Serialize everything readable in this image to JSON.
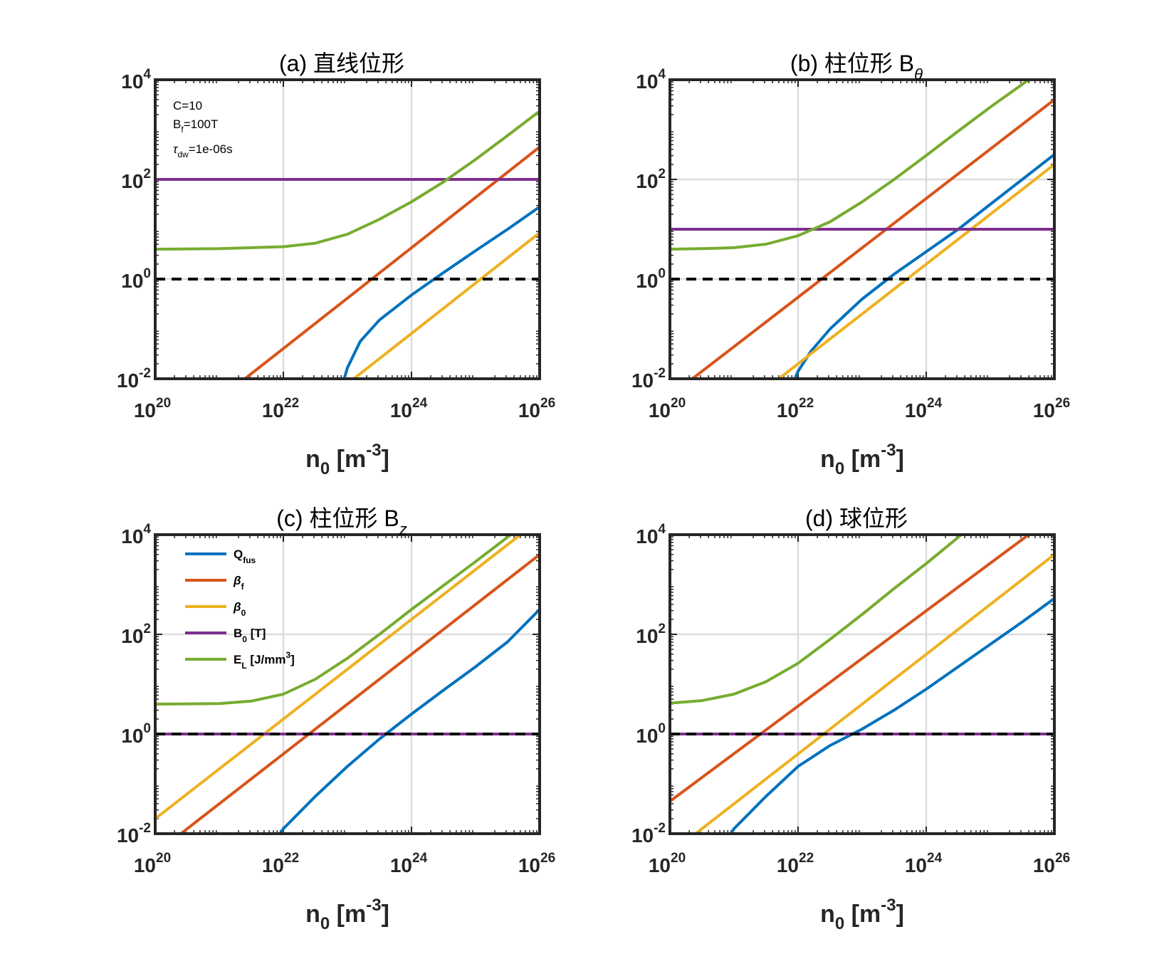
{
  "colors": {
    "Qfus": "#0072BD",
    "beta_f": "#D95319",
    "beta_0": "#EDB120",
    "B0": "#7E2F8E",
    "EL": "#77AC30",
    "reference": "#000000",
    "grid": "#dcdcdc",
    "axes": "#262626"
  },
  "shared": {
    "x_tick_labels": [
      {
        "base": "10",
        "exp": "20"
      },
      {
        "base": "10",
        "exp": "22"
      },
      {
        "base": "10",
        "exp": "24"
      },
      {
        "base": "10",
        "exp": "26"
      }
    ],
    "y_tick_labels": [
      {
        "base": "10",
        "exp": "4"
      },
      {
        "base": "10",
        "exp": "2"
      },
      {
        "base": "10",
        "exp": "0"
      },
      {
        "base": "10",
        "exp": "-2"
      }
    ],
    "xlabel": {
      "main": "n",
      "sub": "0",
      "unit_open": " [m",
      "unit_exp": "-3",
      "unit_close": "]"
    }
  },
  "annotation": {
    "line1": "C=10",
    "line2_main": "B",
    "line2_sub": "f",
    "line2_rest": "=100T",
    "line3_main": "τ",
    "line3_sub": "dw",
    "line3_rest": "=1e-06s"
  },
  "legend": [
    {
      "key": "Qfus",
      "main": "Q",
      "sub": "fus",
      "rest": ""
    },
    {
      "key": "beta_f",
      "main": "β",
      "sub": "f",
      "rest": ""
    },
    {
      "key": "beta_0",
      "main": "β",
      "sub": "0",
      "rest": ""
    },
    {
      "key": "B0",
      "main": "B",
      "sub": "0",
      "rest": " [T]"
    },
    {
      "key": "EL",
      "main": "E",
      "sub": "L",
      "rest": " [J/mm",
      "sup": "3",
      "close": "]"
    }
  ],
  "chart_data": [
    {
      "type": "line",
      "title": "(a) 直线位形",
      "title_sub": "",
      "xlabel": "n0 [m^-3]",
      "xscale": "log",
      "yscale": "log",
      "xlim_exp": [
        20,
        26
      ],
      "ylim_exp": [
        -2,
        4
      ],
      "grid": true,
      "reference_line_y": 1,
      "series": [
        {
          "key": "Qfus",
          "name": "Qfus",
          "x_exp": [
            22.95,
            23.0,
            23.2,
            23.5,
            24.0,
            24.5,
            25.0,
            25.5,
            26.0
          ],
          "y_exp": [
            -2.0,
            -1.78,
            -1.25,
            -0.82,
            -0.32,
            0.13,
            0.57,
            1.0,
            1.45
          ]
        },
        {
          "key": "beta_f",
          "name": "βf",
          "x_exp": [
            21.4,
            26.0
          ],
          "y_exp": [
            -2.0,
            2.65
          ]
        },
        {
          "key": "beta_0",
          "name": "β0",
          "x_exp": [
            23.1,
            26.0
          ],
          "y_exp": [
            -2.0,
            0.93
          ]
        },
        {
          "key": "B0",
          "name": "B0 [T]",
          "x_exp": [
            20.0,
            26.0
          ],
          "y_exp": [
            2.0,
            2.0
          ]
        },
        {
          "key": "EL",
          "name": "EL [J/mm3]",
          "x_exp": [
            20.0,
            21.0,
            22.0,
            22.5,
            23.0,
            23.5,
            24.0,
            24.5,
            25.0,
            25.5,
            26.0
          ],
          "y_exp": [
            0.6,
            0.61,
            0.65,
            0.72,
            0.9,
            1.2,
            1.55,
            1.95,
            2.4,
            2.88,
            3.37
          ]
        }
      ]
    },
    {
      "type": "line",
      "title": "(b) 柱位形 B",
      "title_sub": "θ",
      "xlabel": "n0 [m^-3]",
      "xscale": "log",
      "yscale": "log",
      "xlim_exp": [
        20,
        26
      ],
      "ylim_exp": [
        -2,
        4
      ],
      "grid": true,
      "reference_line_y": 1,
      "series": [
        {
          "key": "Qfus",
          "name": "Qfus",
          "x_exp": [
            21.95,
            22.0,
            22.2,
            22.5,
            23.0,
            23.5,
            24.0,
            24.5,
            25.0,
            25.5,
            26.0
          ],
          "y_exp": [
            -2.0,
            -1.85,
            -1.45,
            -1.0,
            -0.4,
            0.1,
            0.55,
            1.0,
            1.5,
            2.0,
            2.5
          ]
        },
        {
          "key": "beta_f",
          "name": "βf",
          "x_exp": [
            20.35,
            26.0
          ],
          "y_exp": [
            -2.0,
            3.6
          ]
        },
        {
          "key": "beta_0",
          "name": "β0",
          "x_exp": [
            21.7,
            26.0
          ],
          "y_exp": [
            -2.0,
            2.3
          ]
        },
        {
          "key": "B0",
          "name": "B0 [T]",
          "x_exp": [
            20.0,
            26.0
          ],
          "y_exp": [
            1.0,
            1.0
          ]
        },
        {
          "key": "EL",
          "name": "EL [J/mm3]",
          "x_exp": [
            20.0,
            20.5,
            21.0,
            21.5,
            22.0,
            22.5,
            23.0,
            23.5,
            24.0,
            24.5,
            25.0,
            25.6
          ],
          "y_exp": [
            0.6,
            0.61,
            0.63,
            0.7,
            0.87,
            1.15,
            1.55,
            2.0,
            2.48,
            2.97,
            3.45,
            4.0
          ]
        }
      ]
    },
    {
      "type": "line",
      "title": "(c) 柱位形 B",
      "title_sub": "z",
      "xlabel": "n0 [m^-3]",
      "xscale": "log",
      "yscale": "log",
      "xlim_exp": [
        20,
        26
      ],
      "ylim_exp": [
        -2,
        4
      ],
      "grid": true,
      "reference_line_y": 1,
      "series": [
        {
          "key": "Qfus",
          "name": "Qfus",
          "x_exp": [
            21.95,
            22.0,
            22.5,
            23.0,
            23.5,
            24.0,
            24.5,
            25.0,
            25.5,
            26.0
          ],
          "y_exp": [
            -2.0,
            -1.9,
            -1.25,
            -0.65,
            -0.1,
            0.4,
            0.88,
            1.35,
            1.85,
            2.5
          ]
        },
        {
          "key": "beta_f",
          "name": "βf",
          "x_exp": [
            20.4,
            26.0
          ],
          "y_exp": [
            -2.0,
            3.6
          ]
        },
        {
          "key": "beta_0",
          "name": "β0",
          "x_exp": [
            20.0,
            25.7
          ],
          "y_exp": [
            -1.7,
            4.0
          ]
        },
        {
          "key": "B0",
          "name": "B0 [T]",
          "x_exp": [
            20.0,
            26.0
          ],
          "y_exp": [
            0.0,
            0.0
          ]
        },
        {
          "key": "EL",
          "name": "EL [J/mm3]",
          "x_exp": [
            20.0,
            21.0,
            21.5,
            22.0,
            22.5,
            23.0,
            23.5,
            24.0,
            24.5,
            25.0,
            25.55
          ],
          "y_exp": [
            0.6,
            0.61,
            0.66,
            0.8,
            1.1,
            1.52,
            2.0,
            2.5,
            2.98,
            3.46,
            4.0
          ]
        }
      ]
    },
    {
      "type": "line",
      "title": "(d) 球位形",
      "title_sub": "",
      "xlabel": "n0 [m^-3]",
      "xscale": "log",
      "yscale": "log",
      "xlim_exp": [
        20,
        26
      ],
      "ylim_exp": [
        -2,
        4
      ],
      "grid": true,
      "reference_line_y": 1,
      "series": [
        {
          "key": "Qfus",
          "name": "Qfus",
          "x_exp": [
            20.95,
            21.0,
            21.5,
            22.0,
            22.5,
            23.0,
            23.5,
            24.0,
            24.5,
            25.0,
            25.5,
            26.0
          ],
          "y_exp": [
            -2.0,
            -1.9,
            -1.25,
            -0.65,
            -0.23,
            0.1,
            0.48,
            0.9,
            1.35,
            1.8,
            2.25,
            2.72
          ]
        },
        {
          "key": "beta_f",
          "name": "βf",
          "x_exp": [
            20.0,
            25.6
          ],
          "y_exp": [
            -1.35,
            4.0
          ]
        },
        {
          "key": "beta_0",
          "name": "β0",
          "x_exp": [
            20.4,
            26.0
          ],
          "y_exp": [
            -2.0,
            3.6
          ]
        },
        {
          "key": "B0",
          "name": "B0 [T]",
          "x_exp": [
            20.0,
            26.0
          ],
          "y_exp": [
            0.0,
            0.0
          ]
        },
        {
          "key": "EL",
          "name": "EL [J/mm3]",
          "x_exp": [
            20.0,
            20.5,
            21.0,
            21.5,
            22.0,
            22.5,
            23.0,
            23.5,
            24.0,
            24.55
          ],
          "y_exp": [
            0.62,
            0.67,
            0.8,
            1.05,
            1.42,
            1.9,
            2.4,
            2.92,
            3.42,
            4.0
          ]
        }
      ]
    }
  ]
}
